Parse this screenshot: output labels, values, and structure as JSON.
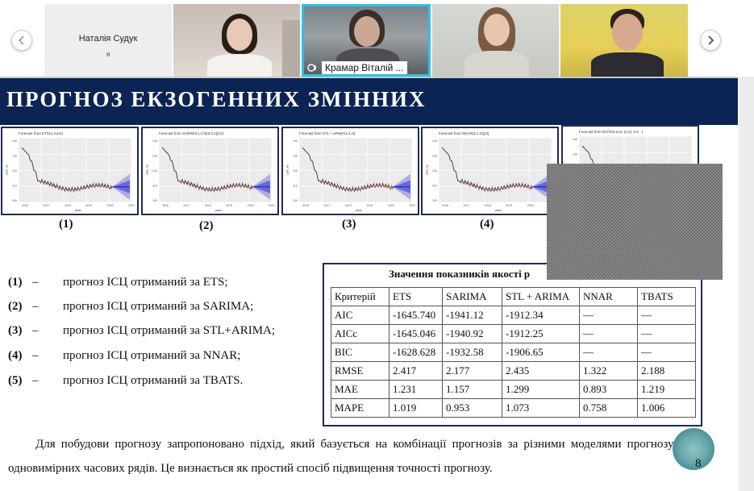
{
  "participants": [
    {
      "name": "Наталія Судук",
      "subtitle": "я"
    },
    {
      "name": ""
    },
    {
      "name": "Крамар Віталій ...",
      "active_speaker": true
    },
    {
      "name": ""
    },
    {
      "name": ""
    }
  ],
  "nav": {
    "prev_icon": "chevron-left-icon",
    "next_icon": "chevron-right-icon"
  },
  "slide": {
    "title": "ПРОГНОЗ ЕКЗОГЕННИХ ЗМІННИХ",
    "charts": [
      {
        "caption": "(1)",
        "heading": "Forecast from ETS(A,Ad,N)"
      },
      {
        "caption": "(2)",
        "heading": "Forecast from SARIMA(1,1,0)(0,0,1)[12]"
      },
      {
        "caption": "(3)",
        "heading": "Forecast from STL + ARIMA(1,1,0)"
      },
      {
        "caption": "(4)",
        "heading": "Forecast from NNAR(2,1,2)[12]"
      },
      {
        "caption": "",
        "heading": "Forecast from BATS(0.013, {0,0}, 0.8, -)"
      }
    ],
    "axis": {
      "y_label": "CPI, %",
      "x_label": "year",
      "y_ticks": [
        "140",
        "130",
        "120",
        "110",
        "100"
      ],
      "x_ticks": [
        "2016",
        "2017",
        "2018",
        "2019",
        "2020",
        "2021"
      ]
    },
    "legend": [
      {
        "num": "(1)",
        "dash": "–",
        "text": "прогноз ІСЦ отриманий за ETS;"
      },
      {
        "num": "(2)",
        "dash": "–",
        "text": "прогноз ІСЦ отриманий за SARIMA;"
      },
      {
        "num": "(3)",
        "dash": "–",
        "text": "прогноз ІСЦ отриманий за STL+ARIMA;"
      },
      {
        "num": "(4)",
        "dash": "–",
        "text": "прогноз ІСЦ отриманий за NNAR;"
      },
      {
        "num": "(5)",
        "dash": "–",
        "text": "прогноз ІСЦ отриманий за TBATS."
      }
    ],
    "table": {
      "title": "Значення показників якості р",
      "headers": [
        "Критерій",
        "ETS",
        "SARIMA",
        "STL + ARIMA",
        "NNAR",
        "TBATS"
      ],
      "rows": [
        [
          "AIC",
          "-1645.740",
          "-1941.12",
          "-1912.34",
          "—",
          "—"
        ],
        [
          "AICc",
          "-1645.046",
          "-1940.92",
          "-1912.25",
          "—",
          "—"
        ],
        [
          "BIC",
          "-1628.628",
          "-1932.58",
          "-1906.65",
          "—",
          "—"
        ],
        [
          "RMSE",
          "2.417",
          "2.177",
          "2.435",
          "1.322",
          "2.188"
        ],
        [
          "MAE",
          "1.231",
          "1.157",
          "1.299",
          "0.893",
          "1.219"
        ],
        [
          "MAPE",
          "1.019",
          "0.953",
          "1.073",
          "0.758",
          "1.006"
        ]
      ]
    },
    "paragraph": "Для побудови прогнозу запропоновано підхід, який базується на комбінації прогнозів за різними моделями прогнозування одновимірних часових рядів. Це визнається як простий спосіб підвищення точності прогнозу.",
    "page_number": "8"
  },
  "colors": {
    "title_bar": "#0c2454",
    "active_border": "#2cc3e6",
    "forecast_fan": "#3a3ad9",
    "fit_line": "#d43a3a"
  }
}
